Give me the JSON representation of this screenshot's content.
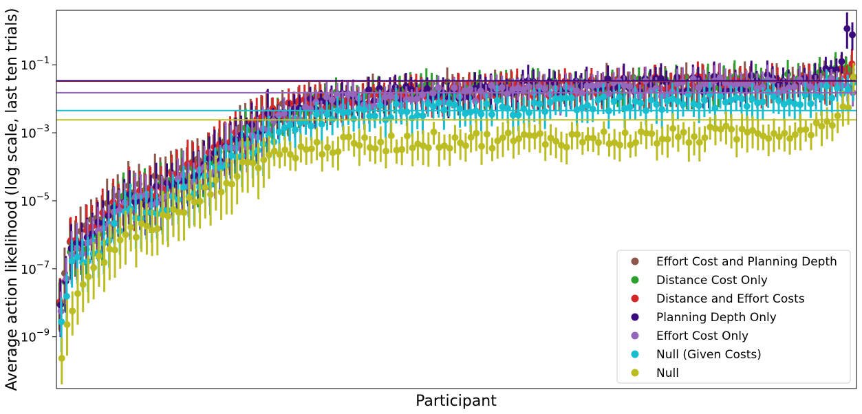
{
  "chart_data": {
    "type": "scatter",
    "title": "",
    "xlabel": "Participant",
    "ylabel": "Average action likelihood (log scale, last ten trials)",
    "yscale": "log",
    "ylim": [
      3e-11,
      4.0
    ],
    "yticks": [
      {
        "value": 1e-09,
        "base": "10",
        "exp": "−9"
      },
      {
        "value": 1e-07,
        "base": "10",
        "exp": "−7"
      },
      {
        "value": 1e-05,
        "base": "10",
        "exp": "−5"
      },
      {
        "value": 0.001,
        "base": "10",
        "exp": "−3"
      },
      {
        "value": 0.1,
        "base": "10",
        "exp": "−1"
      }
    ],
    "n_participants": 150,
    "grid": false,
    "legend_position": "lower right",
    "series": [
      {
        "name": "Effort Cost and Planning Depth",
        "color": "#8c564b",
        "mean": 0.033,
        "anchors": [
          [
            0,
            8e-09
          ],
          [
            2,
            5e-07
          ],
          [
            6,
            2e-06
          ],
          [
            12,
            1.5e-05
          ],
          [
            20,
            4e-05
          ],
          [
            28,
            0.0002
          ],
          [
            38,
            0.003
          ],
          [
            50,
            0.01
          ],
          [
            70,
            0.018
          ],
          [
            110,
            0.025
          ],
          [
            140,
            0.035
          ],
          [
            148,
            0.05
          ],
          [
            149,
            0.06
          ]
        ]
      },
      {
        "name": "Distance Cost Only",
        "color": "#2ca02c",
        "mean": 0.033,
        "anchors": [
          [
            0,
            6e-09
          ],
          [
            2,
            3e-07
          ],
          [
            6,
            8e-07
          ],
          [
            12,
            8e-06
          ],
          [
            20,
            2e-05
          ],
          [
            28,
            0.00015
          ],
          [
            38,
            0.002
          ],
          [
            50,
            0.009
          ],
          [
            70,
            0.017
          ],
          [
            110,
            0.024
          ],
          [
            140,
            0.033
          ],
          [
            148,
            0.05
          ],
          [
            149,
            0.06
          ]
        ]
      },
      {
        "name": "Distance and Effort Costs",
        "color": "#d62728",
        "mean": 0.033,
        "anchors": [
          [
            0,
            7e-09
          ],
          [
            2,
            4e-07
          ],
          [
            6,
            1.5e-06
          ],
          [
            12,
            1e-05
          ],
          [
            20,
            3e-05
          ],
          [
            28,
            0.00018
          ],
          [
            38,
            0.0025
          ],
          [
            50,
            0.01
          ],
          [
            70,
            0.018
          ],
          [
            110,
            0.025
          ],
          [
            140,
            0.034
          ],
          [
            148,
            0.05
          ],
          [
            149,
            0.06
          ]
        ]
      },
      {
        "name": "Planning Depth Only",
        "color": "#3b0a7d",
        "mean": 0.034,
        "anchors": [
          [
            0,
            5e-09
          ],
          [
            2,
            3e-07
          ],
          [
            6,
            1e-06
          ],
          [
            12,
            8e-06
          ],
          [
            20,
            2e-05
          ],
          [
            28,
            0.00015
          ],
          [
            38,
            0.002
          ],
          [
            50,
            0.009
          ],
          [
            70,
            0.017
          ],
          [
            110,
            0.024
          ],
          [
            140,
            0.033
          ],
          [
            147,
            0.08
          ],
          [
            148,
            1.0
          ],
          [
            149,
            1.0
          ]
        ]
      },
      {
        "name": "Effort Cost Only",
        "color": "#9467bd",
        "mean": 0.015,
        "anchors": [
          [
            0,
            5e-09
          ],
          [
            2,
            2e-07
          ],
          [
            6,
            8e-07
          ],
          [
            12,
            6e-06
          ],
          [
            20,
            2e-05
          ],
          [
            28,
            0.0001
          ],
          [
            38,
            0.0015
          ],
          [
            50,
            0.007
          ],
          [
            70,
            0.012
          ],
          [
            110,
            0.02
          ],
          [
            140,
            0.028
          ],
          [
            148,
            0.02
          ],
          [
            149,
            0.02
          ]
        ]
      },
      {
        "name": "Null (Given Costs)",
        "color": "#17becf",
        "mean": 0.0045,
        "anchors": [
          [
            0,
            4e-09
          ],
          [
            2,
            1e-07
          ],
          [
            6,
            3e-07
          ],
          [
            12,
            3e-06
          ],
          [
            20,
            8e-06
          ],
          [
            28,
            5e-05
          ],
          [
            38,
            0.0006
          ],
          [
            50,
            0.003
          ],
          [
            70,
            0.005
          ],
          [
            110,
            0.007
          ],
          [
            140,
            0.012
          ],
          [
            148,
            0.017
          ],
          [
            149,
            0.017
          ]
        ]
      },
      {
        "name": "Null",
        "color": "#bcbd22",
        "mean": 0.0024,
        "anchors": [
          [
            0,
            2e-10
          ],
          [
            2,
            1e-08
          ],
          [
            6,
            1e-07
          ],
          [
            12,
            1e-06
          ],
          [
            20,
            3e-06
          ],
          [
            28,
            2e-05
          ],
          [
            38,
            0.0002
          ],
          [
            50,
            0.0004
          ],
          [
            70,
            0.0006
          ],
          [
            110,
            0.0007
          ],
          [
            140,
            0.0012
          ],
          [
            148,
            0.005
          ],
          [
            149,
            0.07
          ]
        ]
      }
    ]
  }
}
